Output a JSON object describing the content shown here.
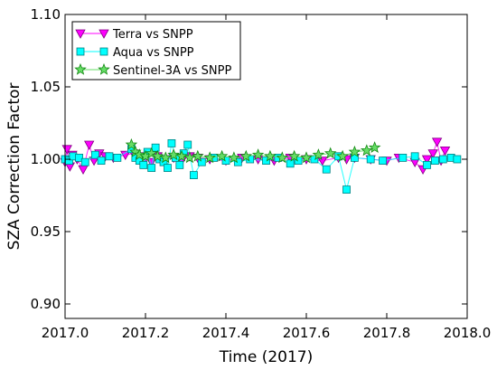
{
  "chart_data": {
    "type": "scatter",
    "title": "",
    "xlabel": "Time (2017)",
    "ylabel": "SZA Correction Factor",
    "xlim": [
      2017.0,
      2018.0
    ],
    "ylim": [
      0.89,
      1.1
    ],
    "xticks": [
      "2017.0",
      "2017.2",
      "2017.4",
      "2017.6",
      "2017.8",
      "2018.0"
    ],
    "xtick_values": [
      2017.0,
      2017.2,
      2017.4,
      2017.6,
      2017.8,
      2018.0
    ],
    "yticks": [
      "0.90",
      "0.95",
      "1.00",
      "1.05",
      "1.10"
    ],
    "ytick_values": [
      0.9,
      0.95,
      1.0,
      1.05,
      1.1
    ],
    "grid": false,
    "legend_position": "top-left",
    "series": [
      {
        "name": "Terra vs SNPP",
        "marker": "triangle-down",
        "color": "#ff00ff",
        "edge": "#800080",
        "x": [
          2017.0,
          2017.005,
          2017.012,
          2017.018,
          2017.03,
          2017.045,
          2017.06,
          2017.072,
          2017.085,
          2017.1,
          2017.12,
          2017.15,
          2017.17,
          2017.185,
          2017.2,
          2017.215,
          2017.23,
          2017.25,
          2017.27,
          2017.29,
          2017.31,
          2017.33,
          2017.36,
          2017.4,
          2017.44,
          2017.48,
          2017.52,
          2017.56,
          2017.6,
          2017.64,
          2017.68,
          2017.7,
          2017.72,
          2017.76,
          2017.8,
          2017.83,
          2017.87,
          2017.89,
          2017.9,
          2017.915,
          2017.925,
          2017.935,
          2017.945
        ],
        "y": [
          0.998,
          1.007,
          0.995,
          1.003,
          1.0,
          0.993,
          1.01,
          0.999,
          1.004,
          1.002,
          1.001,
          1.003,
          1.004,
          1.002,
          1.001,
          0.998,
          1.002,
          1.0,
          1.001,
          0.999,
          1.002,
          1.001,
          1.0,
          0.999,
          1.001,
          1.0,
          0.999,
          1.001,
          1.0,
          0.999,
          1.001,
          1.0,
          1.001,
          1.0,
          0.999,
          1.001,
          0.998,
          0.993,
          1.0,
          1.004,
          1.012,
          0.999,
          1.006
        ]
      },
      {
        "name": "Aqua vs SNPP",
        "marker": "square",
        "color": "#00ffff",
        "edge": "#008080",
        "x": [
          2017.0,
          2017.01,
          2017.02,
          2017.035,
          2017.05,
          2017.075,
          2017.09,
          2017.11,
          2017.13,
          2017.165,
          2017.175,
          2017.185,
          2017.195,
          2017.205,
          2017.215,
          2017.225,
          2017.235,
          2017.245,
          2017.255,
          2017.265,
          2017.275,
          2017.285,
          2017.295,
          2017.305,
          2017.32,
          2017.34,
          2017.37,
          2017.4,
          2017.43,
          2017.46,
          2017.5,
          2017.53,
          2017.56,
          2017.58,
          2017.62,
          2017.65,
          2017.68,
          2017.7,
          2017.72,
          2017.76,
          2017.79,
          2017.84,
          2017.87,
          2017.9,
          2017.92,
          2017.94,
          2017.96,
          2017.975
        ],
        "y": [
          1.0,
          0.999,
          1.002,
          1.001,
          0.998,
          1.003,
          0.999,
          1.002,
          1.001,
          1.007,
          1.001,
          0.999,
          0.996,
          1.005,
          0.994,
          1.008,
          1.0,
          0.998,
          0.994,
          1.011,
          1.001,
          0.996,
          1.004,
          1.01,
          0.989,
          0.998,
          1.001,
          0.999,
          0.998,
          1.0,
          0.999,
          1.001,
          0.997,
          0.999,
          1.0,
          0.993,
          1.002,
          0.979,
          1.001,
          1.0,
          0.999,
          1.001,
          1.002,
          0.996,
          0.999,
          1.0,
          1.001,
          1.0
        ]
      },
      {
        "name": "Sentinel-3A vs SNPP",
        "marker": "star",
        "color": "#66dd66",
        "edge": "#118811",
        "x": [
          2017.165,
          2017.175,
          2017.185,
          2017.2,
          2017.215,
          2017.23,
          2017.25,
          2017.27,
          2017.29,
          2017.31,
          2017.33,
          2017.36,
          2017.39,
          2017.42,
          2017.45,
          2017.48,
          2017.51,
          2017.54,
          2017.57,
          2017.6,
          2017.63,
          2017.66,
          2017.69,
          2017.72,
          2017.75,
          2017.77
        ],
        "y": [
          1.01,
          1.005,
          1.003,
          1.002,
          1.004,
          1.002,
          1.001,
          1.003,
          1.002,
          1.001,
          1.002,
          1.001,
          1.002,
          1.001,
          1.002,
          1.003,
          1.002,
          1.001,
          1.002,
          1.001,
          1.003,
          1.004,
          1.002,
          1.005,
          1.006,
          1.008
        ]
      }
    ]
  }
}
